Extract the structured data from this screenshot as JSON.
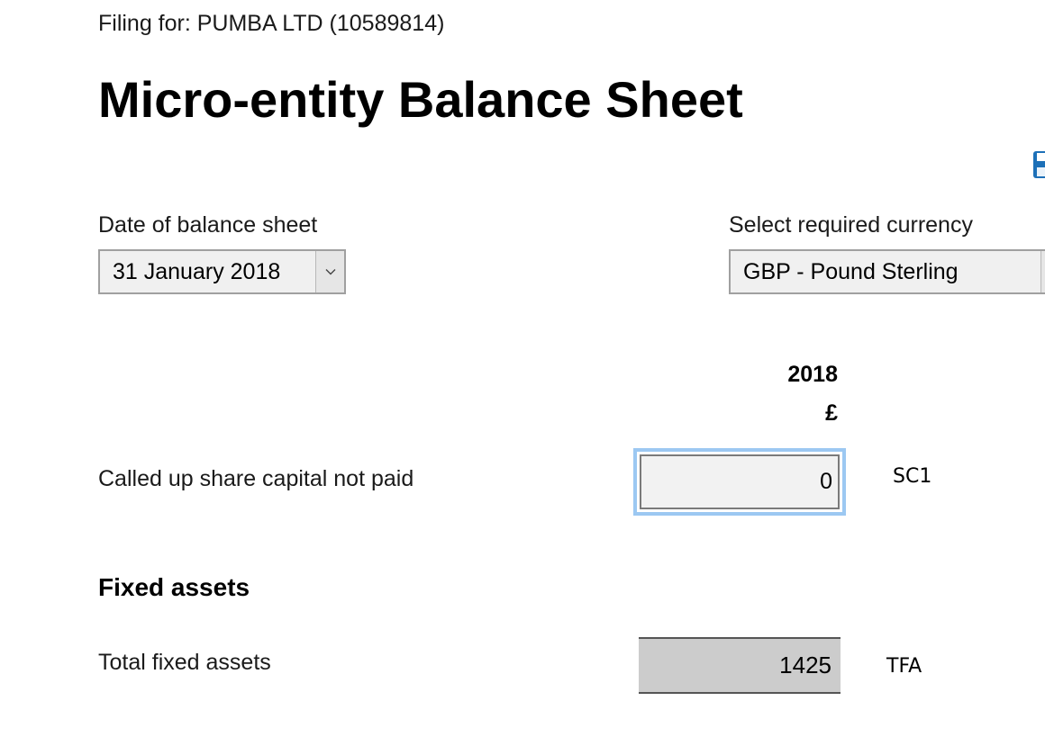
{
  "header": {
    "filing_for": "Filing for: PUMBA LTD (10589814)",
    "title": "Micro-entity Balance Sheet"
  },
  "date_field": {
    "label": "Date of balance sheet",
    "selected": "31 January 2018"
  },
  "currency_field": {
    "label": "Select required currency",
    "selected": "GBP - Pound Sterling"
  },
  "columns": {
    "year": "2018",
    "currency_symbol": "£"
  },
  "rows": {
    "share_capital": {
      "label": "Called up share capital not paid",
      "value": "0",
      "code": "SC1"
    },
    "fixed_assets_heading": "Fixed assets",
    "total_fixed_assets": {
      "label": "Total fixed assets",
      "value": "1425",
      "code": "TFA"
    }
  },
  "icons": {
    "save": "save-icon",
    "dropdown": "chevron-down-icon"
  },
  "colors": {
    "focus_ring": "#9cc8f2",
    "readonly_fill": "#cccccc",
    "input_fill": "#f2f2f2",
    "save_icon": "#1d70b8"
  }
}
